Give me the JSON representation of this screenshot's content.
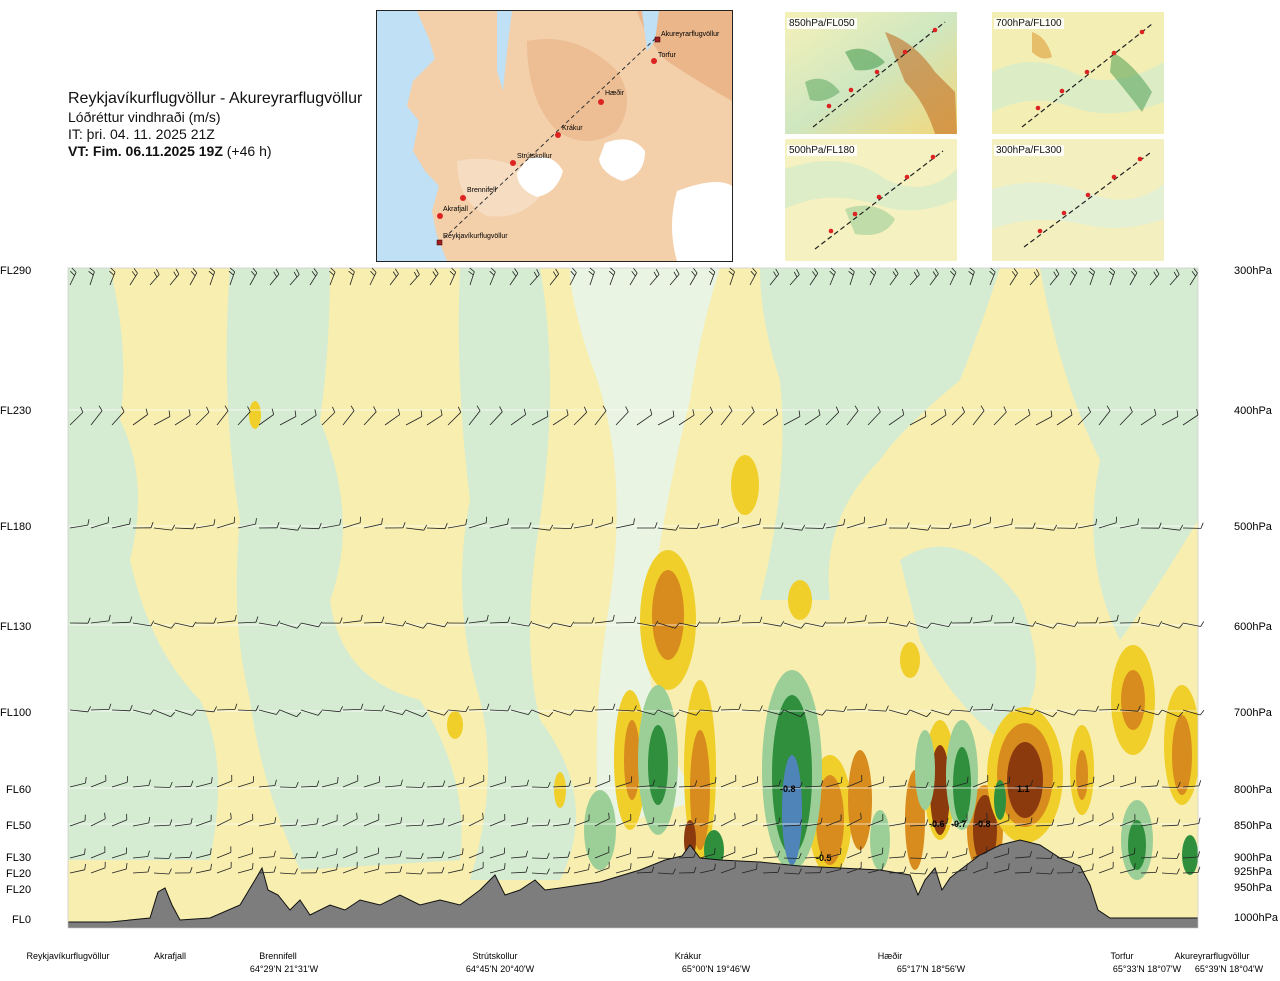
{
  "header": {
    "route": "Reykjavíkurflugvöllur - Akureyrarflugvöllur",
    "variable": "Lóðréttur vindhraði (m/s)",
    "issued": "IT: þri. 04. 11. 2025 21Z",
    "valid_bold": "VT: Fim. 06.11.2025 19Z",
    "valid_rest": " (+46 h)"
  },
  "route_map": {
    "waypoints": [
      "Akureyrarflugvöllur",
      "Torfur",
      "Hæðir",
      "Krákur",
      "Strútskollur",
      "Brennifell",
      "Akrafjall",
      "Reykjavíkurflugvöllur"
    ]
  },
  "mini_maps": [
    {
      "label": "850hPa/FL050"
    },
    {
      "label": "700hPa/FL100"
    },
    {
      "label": "500hPa/FL180"
    },
    {
      "label": "300hPa/FL300"
    }
  ],
  "colors": {
    "strong_up": "#8b3a0e",
    "up": "#d98c1e",
    "weak_up": "#f1cf2a",
    "faint_up": "#f7eeb0",
    "neutral": "#fbfbe6",
    "faint_down": "#d5ecd2",
    "down": "#9ccf98",
    "strong_down": "#2f8f3d",
    "max_down": "#4f84b8",
    "terrain": "#7d7d7d"
  },
  "chart_data": {
    "type": "vertical cross-section",
    "variable": "Lóðréttur vindhraði (m/s)",
    "left_axis_labels": [
      "FL290",
      "FL230",
      "FL180",
      "FL130",
      "FL100",
      "FL60",
      "FL50",
      "FL30",
      "FL20",
      "FL20",
      "FL0"
    ],
    "right_axis_labels": [
      "300hPa",
      "400hPa",
      "500hPa",
      "600hPa",
      "700hPa",
      "800hPa",
      "850hPa",
      "900hPa",
      "925hPa",
      "950hPa",
      "1000hPa"
    ],
    "waypoints": [
      {
        "name": "Reykjavíkurflugvöllur",
        "coord": ""
      },
      {
        "name": "Akrafjall",
        "coord": ""
      },
      {
        "name": "Brennifell",
        "coord": "64°29'N 21°31'W"
      },
      {
        "name": "Strútskollur",
        "coord": "64°45'N 20°40'W"
      },
      {
        "name": "Krákur",
        "coord": "65°00'N 19°46'W"
      },
      {
        "name": "Hæðir",
        "coord": "65°17'N 18°56'W"
      },
      {
        "name": "Torfur",
        "coord": "65°33'N 18°07'W"
      },
      {
        "name": "Akureyrarflugvöllur",
        "coord": "65°39'N 18°04'W"
      }
    ],
    "value_labels": [
      "-0.8",
      "-0.5",
      "-0.6",
      "-0.7",
      "-0.8",
      "1.1"
    ]
  }
}
